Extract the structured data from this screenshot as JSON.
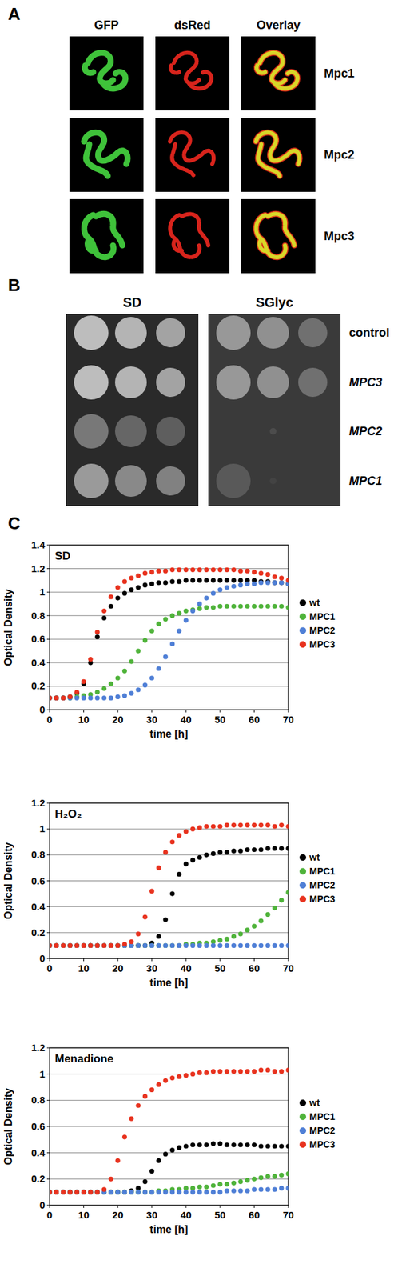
{
  "panel_a": {
    "label": "A",
    "columns": [
      "GFP",
      "dsRed",
      "Overlay"
    ],
    "rows": [
      "Mpc1",
      "Mpc2",
      "Mpc3"
    ]
  },
  "panel_b": {
    "label": "B",
    "columns": [
      "SD",
      "SGlyc"
    ],
    "rows": [
      "control",
      "MPC3",
      "MPC2",
      "MPC1"
    ]
  },
  "panel_c": {
    "label": "C"
  },
  "chart_data": [
    {
      "type": "line",
      "title": "SD",
      "x_label": "time [h]",
      "y_label": "Optical Density",
      "x": [
        0,
        2,
        4,
        6,
        8,
        10,
        12,
        14,
        16,
        18,
        20,
        22,
        24,
        26,
        28,
        30,
        32,
        34,
        36,
        38,
        40,
        42,
        44,
        46,
        48,
        50,
        52,
        54,
        56,
        58,
        60,
        62,
        64,
        66,
        68,
        70
      ],
      "xlim": [
        0,
        70
      ],
      "xticks": [
        0,
        10,
        20,
        30,
        40,
        50,
        60,
        70
      ],
      "ylim": [
        0,
        1.4
      ],
      "yticks": [
        0,
        0.2,
        0.4,
        0.6,
        0.8,
        1,
        1.2,
        1.4
      ],
      "grid": true,
      "legend": "right",
      "marker": "circle",
      "line_style": "none",
      "series": [
        {
          "name": "wt",
          "color": "#000000",
          "values": [
            0.1,
            0.1,
            0.1,
            0.11,
            0.14,
            0.22,
            0.4,
            0.62,
            0.78,
            0.88,
            0.95,
            0.99,
            1.02,
            1.04,
            1.06,
            1.07,
            1.08,
            1.08,
            1.09,
            1.09,
            1.1,
            1.1,
            1.1,
            1.1,
            1.1,
            1.1,
            1.1,
            1.1,
            1.1,
            1.1,
            1.1,
            1.09,
            1.09,
            1.08,
            1.08,
            1.07
          ]
        },
        {
          "name": "MPC1",
          "color": "#4fb33a",
          "values": [
            0.1,
            0.1,
            0.1,
            0.1,
            0.11,
            0.12,
            0.13,
            0.15,
            0.18,
            0.22,
            0.27,
            0.33,
            0.41,
            0.5,
            0.59,
            0.67,
            0.73,
            0.77,
            0.8,
            0.82,
            0.84,
            0.85,
            0.86,
            0.87,
            0.87,
            0.88,
            0.88,
            0.88,
            0.88,
            0.88,
            0.88,
            0.88,
            0.88,
            0.88,
            0.88,
            0.87
          ]
        },
        {
          "name": "MPC2",
          "color": "#4f7fd6",
          "values": [
            0.1,
            0.1,
            0.1,
            0.1,
            0.1,
            0.1,
            0.1,
            0.1,
            0.1,
            0.1,
            0.11,
            0.12,
            0.14,
            0.17,
            0.21,
            0.27,
            0.35,
            0.45,
            0.56,
            0.67,
            0.76,
            0.84,
            0.9,
            0.95,
            0.99,
            1.02,
            1.04,
            1.05,
            1.06,
            1.07,
            1.07,
            1.08,
            1.08,
            1.08,
            1.08,
            1.07
          ]
        },
        {
          "name": "MPC3",
          "color": "#e8321e",
          "values": [
            0.1,
            0.1,
            0.1,
            0.11,
            0.15,
            0.24,
            0.43,
            0.66,
            0.84,
            0.96,
            1.04,
            1.09,
            1.12,
            1.14,
            1.16,
            1.17,
            1.18,
            1.18,
            1.19,
            1.19,
            1.19,
            1.19,
            1.19,
            1.19,
            1.19,
            1.19,
            1.19,
            1.19,
            1.18,
            1.18,
            1.17,
            1.16,
            1.15,
            1.13,
            1.12,
            1.1
          ]
        }
      ]
    },
    {
      "type": "line",
      "title": "H₂O₂",
      "x_label": "time [h]",
      "y_label": "Optical Density",
      "x": [
        0,
        2,
        4,
        6,
        8,
        10,
        12,
        14,
        16,
        18,
        20,
        22,
        24,
        26,
        28,
        30,
        32,
        34,
        36,
        38,
        40,
        42,
        44,
        46,
        48,
        50,
        52,
        54,
        56,
        58,
        60,
        62,
        64,
        66,
        68,
        70
      ],
      "xlim": [
        0,
        70
      ],
      "xticks": [
        0,
        10,
        20,
        30,
        40,
        50,
        60,
        70
      ],
      "ylim": [
        0,
        1.2
      ],
      "yticks": [
        0,
        0.2,
        0.4,
        0.6,
        0.8,
        1,
        1.2
      ],
      "grid": true,
      "legend": "right",
      "marker": "circle",
      "line_style": "none",
      "series": [
        {
          "name": "wt",
          "color": "#000000",
          "values": [
            0.1,
            0.1,
            0.1,
            0.1,
            0.1,
            0.1,
            0.1,
            0.1,
            0.1,
            0.1,
            0.1,
            0.1,
            0.1,
            0.1,
            0.1,
            0.12,
            0.17,
            0.3,
            0.5,
            0.65,
            0.73,
            0.76,
            0.78,
            0.8,
            0.81,
            0.82,
            0.82,
            0.83,
            0.83,
            0.84,
            0.84,
            0.84,
            0.85,
            0.85,
            0.85,
            0.85
          ]
        },
        {
          "name": "MPC1",
          "color": "#4fb33a",
          "values": [
            0.1,
            0.1,
            0.1,
            0.1,
            0.1,
            0.1,
            0.1,
            0.1,
            0.1,
            0.1,
            0.1,
            0.1,
            0.1,
            0.1,
            0.1,
            0.1,
            0.1,
            0.1,
            0.1,
            0.1,
            0.11,
            0.11,
            0.12,
            0.12,
            0.13,
            0.14,
            0.15,
            0.17,
            0.19,
            0.22,
            0.25,
            0.29,
            0.34,
            0.39,
            0.45,
            0.51
          ]
        },
        {
          "name": "MPC2",
          "color": "#4f7fd6",
          "values": [
            0.1,
            0.1,
            0.1,
            0.1,
            0.1,
            0.1,
            0.1,
            0.1,
            0.1,
            0.1,
            0.1,
            0.1,
            0.1,
            0.1,
            0.1,
            0.1,
            0.1,
            0.1,
            0.1,
            0.1,
            0.1,
            0.1,
            0.1,
            0.1,
            0.1,
            0.1,
            0.1,
            0.1,
            0.1,
            0.1,
            0.1,
            0.1,
            0.1,
            0.1,
            0.1,
            0.1
          ]
        },
        {
          "name": "MPC3",
          "color": "#e8321e",
          "values": [
            0.1,
            0.1,
            0.1,
            0.1,
            0.1,
            0.1,
            0.1,
            0.1,
            0.1,
            0.1,
            0.1,
            0.11,
            0.13,
            0.19,
            0.32,
            0.52,
            0.7,
            0.82,
            0.9,
            0.95,
            0.98,
            1.0,
            1.01,
            1.02,
            1.02,
            1.02,
            1.03,
            1.03,
            1.03,
            1.03,
            1.03,
            1.03,
            1.03,
            1.02,
            1.03,
            1.02
          ]
        }
      ]
    },
    {
      "type": "line",
      "title": "Menadione",
      "x_label": "time [h]",
      "y_label": "Optical Density",
      "x": [
        0,
        2,
        4,
        6,
        8,
        10,
        12,
        14,
        16,
        18,
        20,
        22,
        24,
        26,
        28,
        30,
        32,
        34,
        36,
        38,
        40,
        42,
        44,
        46,
        48,
        50,
        52,
        54,
        56,
        58,
        60,
        62,
        64,
        66,
        68,
        70
      ],
      "xlim": [
        0,
        70
      ],
      "xticks": [
        0,
        10,
        20,
        30,
        40,
        50,
        60,
        70
      ],
      "ylim": [
        0,
        1.2
      ],
      "yticks": [
        0,
        0.2,
        0.4,
        0.6,
        0.8,
        1,
        1.2
      ],
      "grid": true,
      "legend": "right",
      "marker": "circle",
      "line_style": "none",
      "series": [
        {
          "name": "wt",
          "color": "#000000",
          "values": [
            0.1,
            0.1,
            0.1,
            0.1,
            0.1,
            0.1,
            0.1,
            0.1,
            0.1,
            0.1,
            0.1,
            0.1,
            0.11,
            0.13,
            0.18,
            0.26,
            0.34,
            0.39,
            0.42,
            0.44,
            0.45,
            0.46,
            0.46,
            0.46,
            0.47,
            0.47,
            0.46,
            0.46,
            0.46,
            0.46,
            0.46,
            0.45,
            0.45,
            0.45,
            0.45,
            0.45
          ]
        },
        {
          "name": "MPC1",
          "color": "#4fb33a",
          "values": [
            0.1,
            0.1,
            0.1,
            0.1,
            0.1,
            0.1,
            0.1,
            0.1,
            0.1,
            0.1,
            0.1,
            0.1,
            0.1,
            0.1,
            0.1,
            0.1,
            0.11,
            0.11,
            0.12,
            0.12,
            0.13,
            0.13,
            0.14,
            0.14,
            0.15,
            0.16,
            0.16,
            0.17,
            0.18,
            0.19,
            0.2,
            0.21,
            0.22,
            0.22,
            0.23,
            0.24
          ]
        },
        {
          "name": "MPC2",
          "color": "#4f7fd6",
          "values": [
            0.1,
            0.1,
            0.1,
            0.1,
            0.1,
            0.1,
            0.1,
            0.1,
            0.1,
            0.1,
            0.1,
            0.1,
            0.1,
            0.1,
            0.1,
            0.1,
            0.1,
            0.1,
            0.1,
            0.1,
            0.1,
            0.1,
            0.1,
            0.1,
            0.1,
            0.1,
            0.11,
            0.11,
            0.11,
            0.11,
            0.12,
            0.12,
            0.12,
            0.12,
            0.13,
            0.13
          ]
        },
        {
          "name": "MPC3",
          "color": "#e8321e",
          "values": [
            0.1,
            0.1,
            0.1,
            0.1,
            0.1,
            0.1,
            0.1,
            0.1,
            0.12,
            0.2,
            0.34,
            0.52,
            0.66,
            0.76,
            0.83,
            0.88,
            0.92,
            0.95,
            0.97,
            0.98,
            0.99,
            1.0,
            1.01,
            1.01,
            1.02,
            1.02,
            1.02,
            1.02,
            1.02,
            1.02,
            1.02,
            1.03,
            1.03,
            1.02,
            1.02,
            1.03
          ]
        }
      ]
    }
  ]
}
